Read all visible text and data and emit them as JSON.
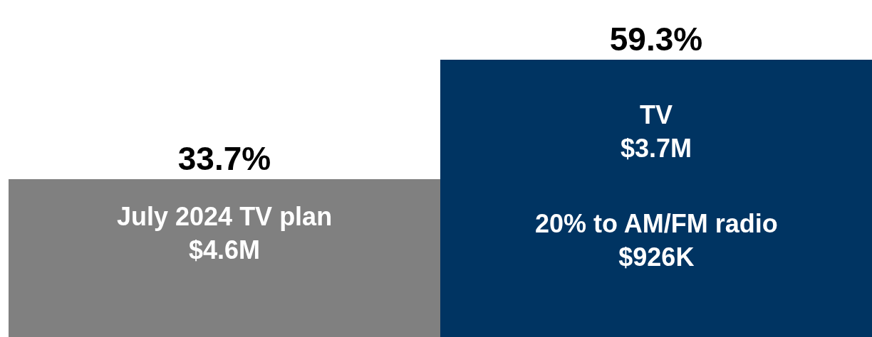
{
  "chart_data": {
    "type": "bar",
    "categories": [
      null,
      null
    ],
    "values": [
      33.7,
      59.3
    ],
    "value_labels": [
      "33.7%",
      "59.3%"
    ],
    "colors": [
      "#808080",
      "#003462"
    ],
    "ylim": [
      0,
      72
    ],
    "tick_labels": false,
    "grid": false,
    "legend": false,
    "annotations": [
      "July 2024 TV plan\n$4.6M",
      "TV\n$3.7M",
      "20% to AM/FM radio\n$926K"
    ]
  }
}
